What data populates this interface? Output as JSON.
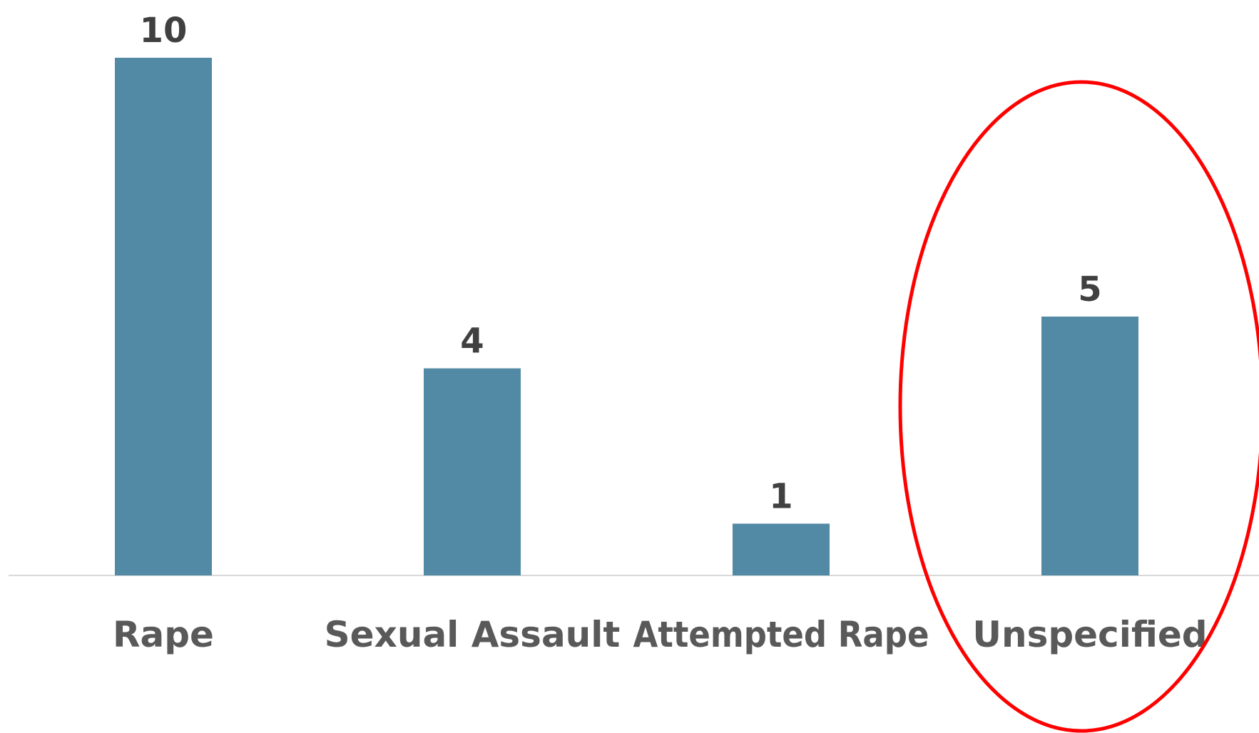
{
  "chart_data": {
    "type": "bar",
    "categories": [
      "Rape",
      "Sexual Assault",
      "Attempted Rape",
      "Unspecified"
    ],
    "values": [
      10,
      4,
      1,
      5
    ],
    "data_labels": [
      "10",
      "4",
      "1",
      "5"
    ],
    "title": "",
    "xlabel": "",
    "ylabel": "",
    "ylim": [
      0,
      10
    ],
    "grid": false,
    "legend": "none",
    "highlight_category": "Unspecified",
    "colors": {
      "bar": "#5289A5",
      "highlight": "#FF0000",
      "axis": "#D9D9D9"
    }
  }
}
